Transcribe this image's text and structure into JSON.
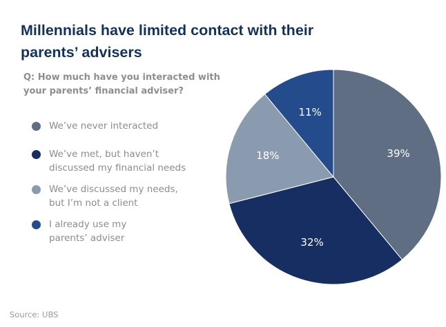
{
  "header": {
    "title": "Millennials have limited contact with their parents’ advisers",
    "question": "Q: How much have you interacted with your parents’ financial adviser?"
  },
  "legend": {
    "items": [
      {
        "label": "We’ve never interacted",
        "color": "#5f6e82"
      },
      {
        "label": "We’ve met, but haven’t\ndiscussed my financial needs",
        "color": "#172e63"
      },
      {
        "label": "We’ve discussed my needs,\nbut I’m not a client",
        "color": "#8a9bb0"
      },
      {
        "label": "I already use my\nparents’ adviser",
        "color": "#244b8c"
      }
    ]
  },
  "footer": {
    "source": "Source: UBS"
  },
  "chart_data": {
    "type": "pie",
    "slices": [
      {
        "label": "We’ve never interacted",
        "value": 39,
        "display": "39%",
        "color": "#5f6e82"
      },
      {
        "label": "We’ve met, but haven’t discussed my financial needs",
        "value": 32,
        "display": "32%",
        "color": "#172e63"
      },
      {
        "label": "We’ve discussed my needs, but I’m not a client",
        "value": 18,
        "display": "18%",
        "color": "#8a9bb0"
      },
      {
        "label": "I already use my parents’ adviser",
        "value": 11,
        "display": "11%",
        "color": "#244b8c"
      }
    ],
    "start": "12 o'clock",
    "direction": "clockwise"
  }
}
